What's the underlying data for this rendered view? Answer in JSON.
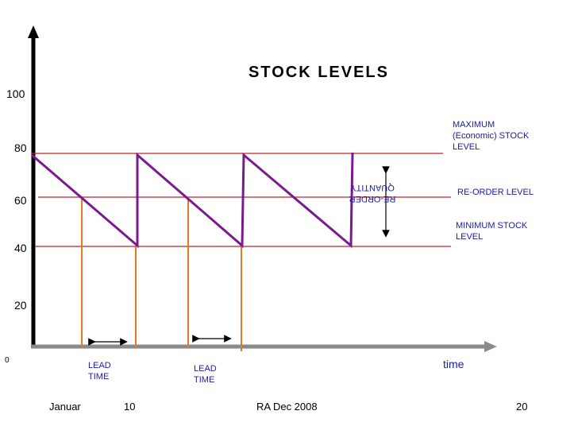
{
  "slide": {
    "title": "STOCK LEVELS",
    "footer": {
      "left": "Januar",
      "left_fragment": "10",
      "center": "RA Dec 2008",
      "right": "20"
    }
  },
  "axes": {
    "y_ticks": [
      "100",
      "80",
      "60",
      "40",
      "20"
    ],
    "origin_label": "0",
    "x_label": "time"
  },
  "labels": {
    "maximum": [
      "MAXIMUM",
      "(Economic) STOCK",
      "LEVEL"
    ],
    "reorder_level": "RE-ORDER LEVEL",
    "minimum": [
      "MINIMUM STOCK",
      "LEVEL"
    ],
    "reorder_quantity": [
      "RE-ORDER",
      "QUANTITY"
    ],
    "lead_time_1": [
      "LEAD",
      "TIME"
    ],
    "lead_time_2": [
      "LEAD",
      "TIME"
    ]
  },
  "colors": {
    "level_line": "#c0202a",
    "stock_line": "#7b1a8c",
    "lead_line": "#e07b22",
    "axis": "#000000",
    "label_text": "#1a1aa6"
  }
}
